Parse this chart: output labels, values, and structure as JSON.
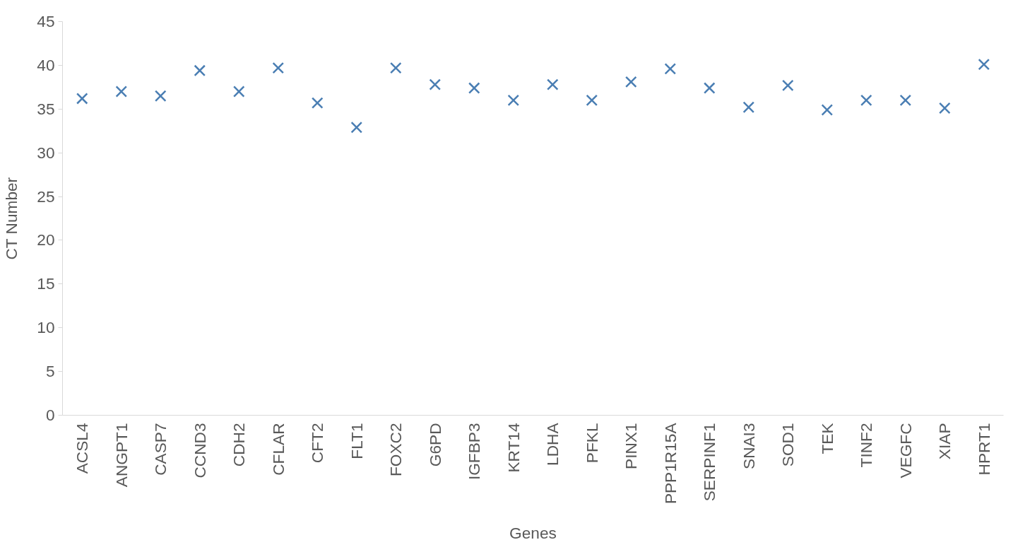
{
  "chart_data": {
    "type": "scatter",
    "xlabel": "Genes",
    "ylabel": "CT Number",
    "categories": [
      "ACSL4",
      "ANGPT1",
      "CASP7",
      "CCND3",
      "CDH2",
      "CFLAR",
      "CFT2",
      "FLT1",
      "FOXC2",
      "G6PD",
      "IGFBP3",
      "KRT14",
      "LDHA",
      "PFKL",
      "PINX1",
      "PPP1R15A",
      "SERPINF1",
      "SNAI3",
      "SOD1",
      "TEK",
      "TINF2",
      "VEGFC",
      "XIAP",
      "HPRT1"
    ],
    "series": [
      {
        "color": "#4a7eb3",
        "values": [
          36.2,
          37.0,
          36.5,
          39.4,
          37.0,
          39.7,
          35.7,
          32.9,
          39.7,
          37.8,
          37.4,
          36.0,
          37.8,
          36.0,
          38.1,
          39.6,
          37.4,
          35.2,
          37.7,
          34.9,
          36.0,
          36.0,
          35.1,
          40.1
        ]
      }
    ],
    "ylim": [
      0,
      45
    ],
    "yticks": [
      0,
      5,
      10,
      15,
      20,
      25,
      30,
      35,
      40,
      45
    ],
    "grid": false,
    "marker": "cross"
  }
}
